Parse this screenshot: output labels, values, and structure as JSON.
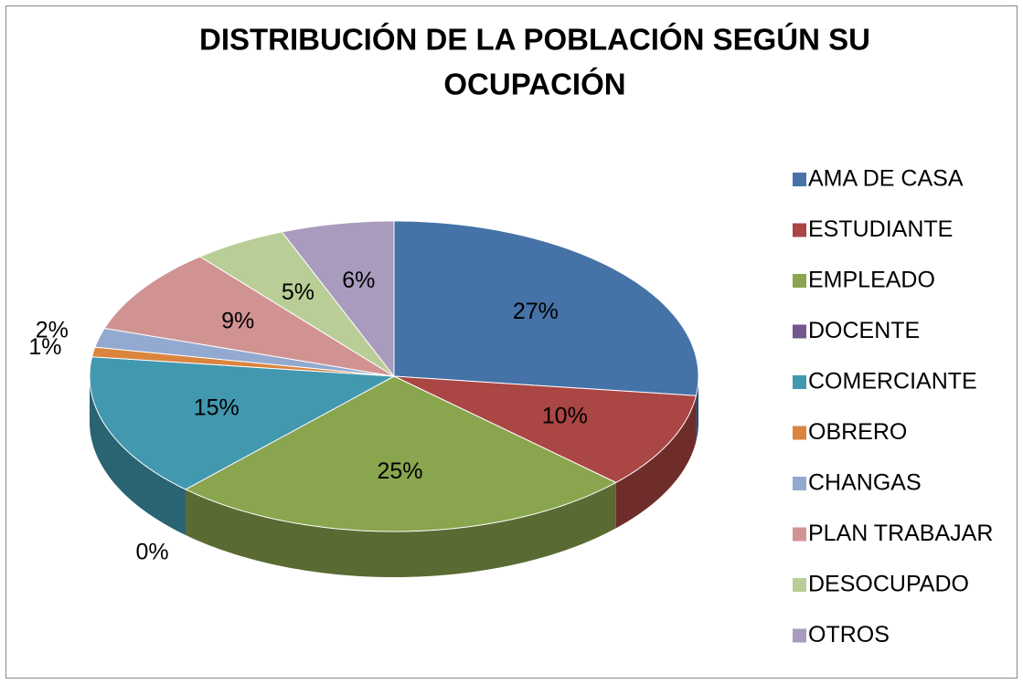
{
  "chart_data": {
    "type": "pie",
    "title": [
      "DISTRIBUCIÓN DE LA POBLACIÓN SEGÚN SU",
      "OCUPACIÓN"
    ],
    "categories": [
      "AMA DE CASA",
      "ESTUDIANTE",
      "EMPLEADO",
      "DOCENTE",
      "COMERCIANTE",
      "OBRERO",
      "CHANGAS",
      "PLAN TRABAJAR",
      "DESOCUPADO",
      "OTROS"
    ],
    "values": [
      27,
      10,
      25,
      0,
      15,
      1,
      2,
      9,
      5,
      6
    ],
    "value_labels": [
      "27%",
      "10%",
      "25%",
      "0%",
      "15%",
      "1%",
      "2%",
      "9%",
      "5%",
      "6%"
    ],
    "colors": [
      "#4572a7",
      "#aa4643",
      "#89a54e",
      "#71588f",
      "#4198af",
      "#db843d",
      "#93a9cf",
      "#d19392",
      "#b9cd96",
      "#a99bbd"
    ],
    "legend": "right"
  }
}
